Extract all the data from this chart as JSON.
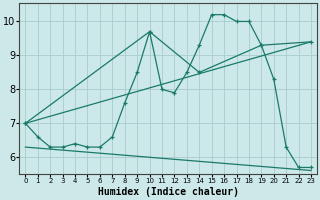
{
  "background_color": "#cce8e8",
  "grid_color": "#aacccc",
  "line_color": "#1a7a6a",
  "xlabel": "Humidex (Indice chaleur)",
  "xlim": [
    -0.5,
    23.5
  ],
  "ylim": [
    5.5,
    10.55
  ],
  "yticks": [
    6,
    7,
    8,
    9,
    10
  ],
  "xticks": [
    0,
    1,
    2,
    3,
    4,
    5,
    6,
    7,
    8,
    9,
    10,
    11,
    12,
    13,
    14,
    15,
    16,
    17,
    18,
    19,
    20,
    21,
    22,
    23
  ],
  "line1_x": [
    0,
    1,
    2,
    3,
    4,
    5,
    6,
    7,
    8,
    9,
    10,
    11,
    12,
    13,
    14,
    15,
    16,
    17,
    18,
    19,
    20,
    21,
    22,
    23
  ],
  "line1_y": [
    7.0,
    6.6,
    6.3,
    6.3,
    6.4,
    6.3,
    6.3,
    6.6,
    7.6,
    8.5,
    9.7,
    8.0,
    7.9,
    8.5,
    9.3,
    10.2,
    10.2,
    10.0,
    10.0,
    9.3,
    8.3,
    6.3,
    5.7,
    5.7
  ],
  "line2_x": [
    0,
    23
  ],
  "line2_y": [
    7.0,
    9.4
  ],
  "line3_x": [
    0,
    10,
    14,
    19,
    23
  ],
  "line3_y": [
    7.0,
    9.7,
    8.5,
    9.3,
    9.4
  ],
  "line4_x": [
    0,
    1,
    2,
    3,
    4,
    5,
    6,
    7,
    8,
    9,
    10,
    11,
    12,
    13,
    14,
    15,
    16,
    17,
    18,
    19,
    20,
    21,
    22,
    23
  ],
  "line4_y": [
    6.3,
    6.27,
    6.24,
    6.21,
    6.18,
    6.15,
    6.12,
    6.09,
    6.06,
    6.03,
    6.0,
    5.97,
    5.94,
    5.91,
    5.88,
    5.85,
    5.82,
    5.79,
    5.76,
    5.73,
    5.7,
    5.67,
    5.64,
    5.61
  ]
}
